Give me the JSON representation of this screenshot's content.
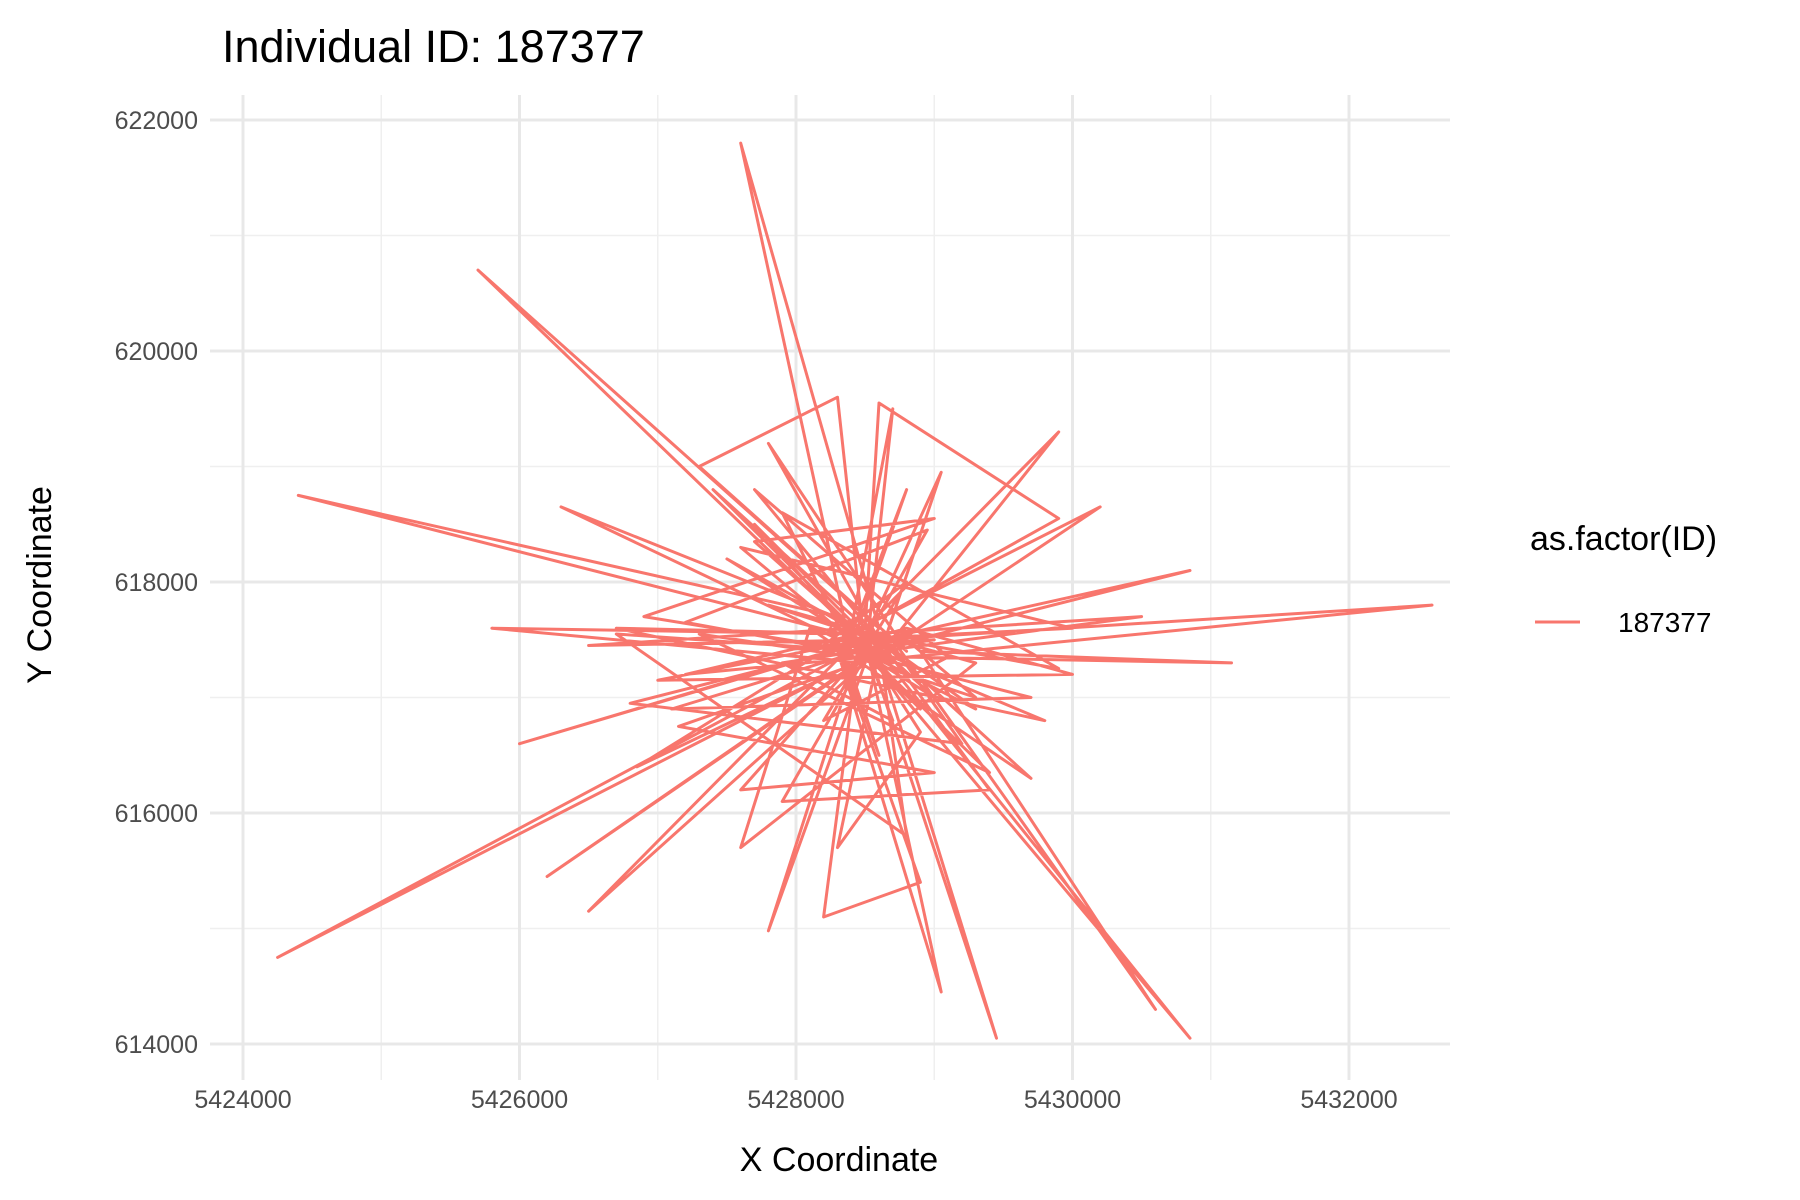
{
  "chart_data": {
    "type": "line",
    "title": "Individual ID: 187377",
    "xlabel": "X Coordinate",
    "ylabel": "Y Coordinate",
    "xlim": [
      5424000,
      5433000
    ],
    "ylim": [
      613800,
      622000
    ],
    "x_ticks": [
      5424000,
      5426000,
      5428000,
      5430000,
      5432000
    ],
    "x_tick_labels": [
      "5424000",
      "5426000",
      "5428000",
      "5430000",
      "5432000"
    ],
    "y_ticks": [
      614000,
      616000,
      618000,
      620000,
      622000
    ],
    "y_tick_labels": [
      "614000",
      "616000",
      "618000",
      "620000",
      "622000"
    ],
    "grid": true,
    "legend": {
      "title": "as.factor(ID)",
      "position": "right",
      "entries": [
        "187377"
      ]
    },
    "series": [
      {
        "name": "187377",
        "color": "#F8766D",
        "x": [
          5428500,
          5424400,
          5428300,
          5425700,
          5428600,
          5427600,
          5428400,
          5424250,
          5428500,
          5426200,
          5428700,
          5426300,
          5428400,
          5426500,
          5428500,
          5427800,
          5428450,
          5428200,
          5428900,
          5428250,
          5429050,
          5428500,
          5429450,
          5428600,
          5429050,
          5428550,
          5430200,
          5428700,
          5430850,
          5428600,
          5432600,
          5428800,
          5431150,
          5428900,
          5430600,
          5428700,
          5429900,
          5428500,
          5428600,
          5429900,
          5428400,
          5428800,
          5428400,
          5429000,
          5428500,
          5430500,
          5428600,
          5430850,
          5428500,
          5428300,
          5427300,
          5428800,
          5427800,
          5428600,
          5426500,
          5428400,
          5428700,
          5428500,
          5425800,
          5428400,
          5426850,
          5428600,
          5428300,
          5428900,
          5428500,
          5427500,
          5428700,
          5427150,
          5429000,
          5427600,
          5428600,
          5428300,
          5429300,
          5428800,
          5428450,
          5427200,
          5428500,
          5427900,
          5429400,
          5428600,
          5429700,
          5428100,
          5427600,
          5429300,
          5427800,
          5428700,
          5429200,
          5426800,
          5428600,
          5427400,
          5428500,
          5427700,
          5429000,
          5426900,
          5428700,
          5429800,
          5426700,
          5428500,
          5429900,
          5427900,
          5428400,
          5429700,
          5427100,
          5428600,
          5428800,
          5426700,
          5428500,
          5428200,
          5429100,
          5427700,
          5428600,
          5429300,
          5428400,
          5426000,
          5428800,
          5430000,
          5427000,
          5428500,
          5428950,
          5427200,
          5428350,
          5428600,
          5428300,
          5430000,
          5427600,
          5428500,
          5429400,
          5427300,
          5428700,
          5427700,
          5428900,
          5428300,
          5428600,
          5428450,
          5428700,
          5427900,
          5429000,
          5428200,
          5428800,
          5428500
        ],
        "y": [
          617500,
          618750,
          617700,
          620700,
          617600,
          621800,
          617400,
          614750,
          617350,
          615450,
          617500,
          618650,
          617450,
          615150,
          617300,
          614980,
          617400,
          615100,
          615400,
          617600,
          614450,
          617500,
          614050,
          617350,
          618950,
          617650,
          618650,
          617450,
          618100,
          617500,
          617800,
          617350,
          617300,
          617400,
          614300,
          617500,
          619300,
          617600,
          619550,
          618550,
          617550,
          618800,
          617450,
          617000,
          617550,
          617700,
          617400,
          614050,
          617400,
          619600,
          619000,
          617400,
          619200,
          617500,
          617450,
          617600,
          619500,
          617300,
          617600,
          617550,
          616400,
          617400,
          615700,
          616700,
          617450,
          618200,
          617400,
          616750,
          616350,
          616200,
          617550,
          617400,
          617000,
          617500,
          617550,
          617200,
          617350,
          616100,
          616200,
          617500,
          616300,
          617600,
          615700,
          617300,
          617800,
          617450,
          616600,
          616950,
          617500,
          618800,
          617500,
          618350,
          618550,
          617700,
          617350,
          616800,
          617600,
          617550,
          617250,
          618600,
          617400,
          617000,
          616900,
          617450,
          615800,
          617550,
          617400,
          616800,
          617350,
          618800,
          617500,
          616900,
          617450,
          616600,
          617600,
          617200,
          617150,
          617500,
          618450,
          617650,
          617400,
          616500,
          617500,
          617600,
          618300,
          617400,
          616350,
          617550,
          617300,
          618500,
          616900,
          617600,
          617350,
          617600,
          616800,
          617300,
          617500,
          617450,
          618000,
          617400
        ]
      }
    ]
  }
}
